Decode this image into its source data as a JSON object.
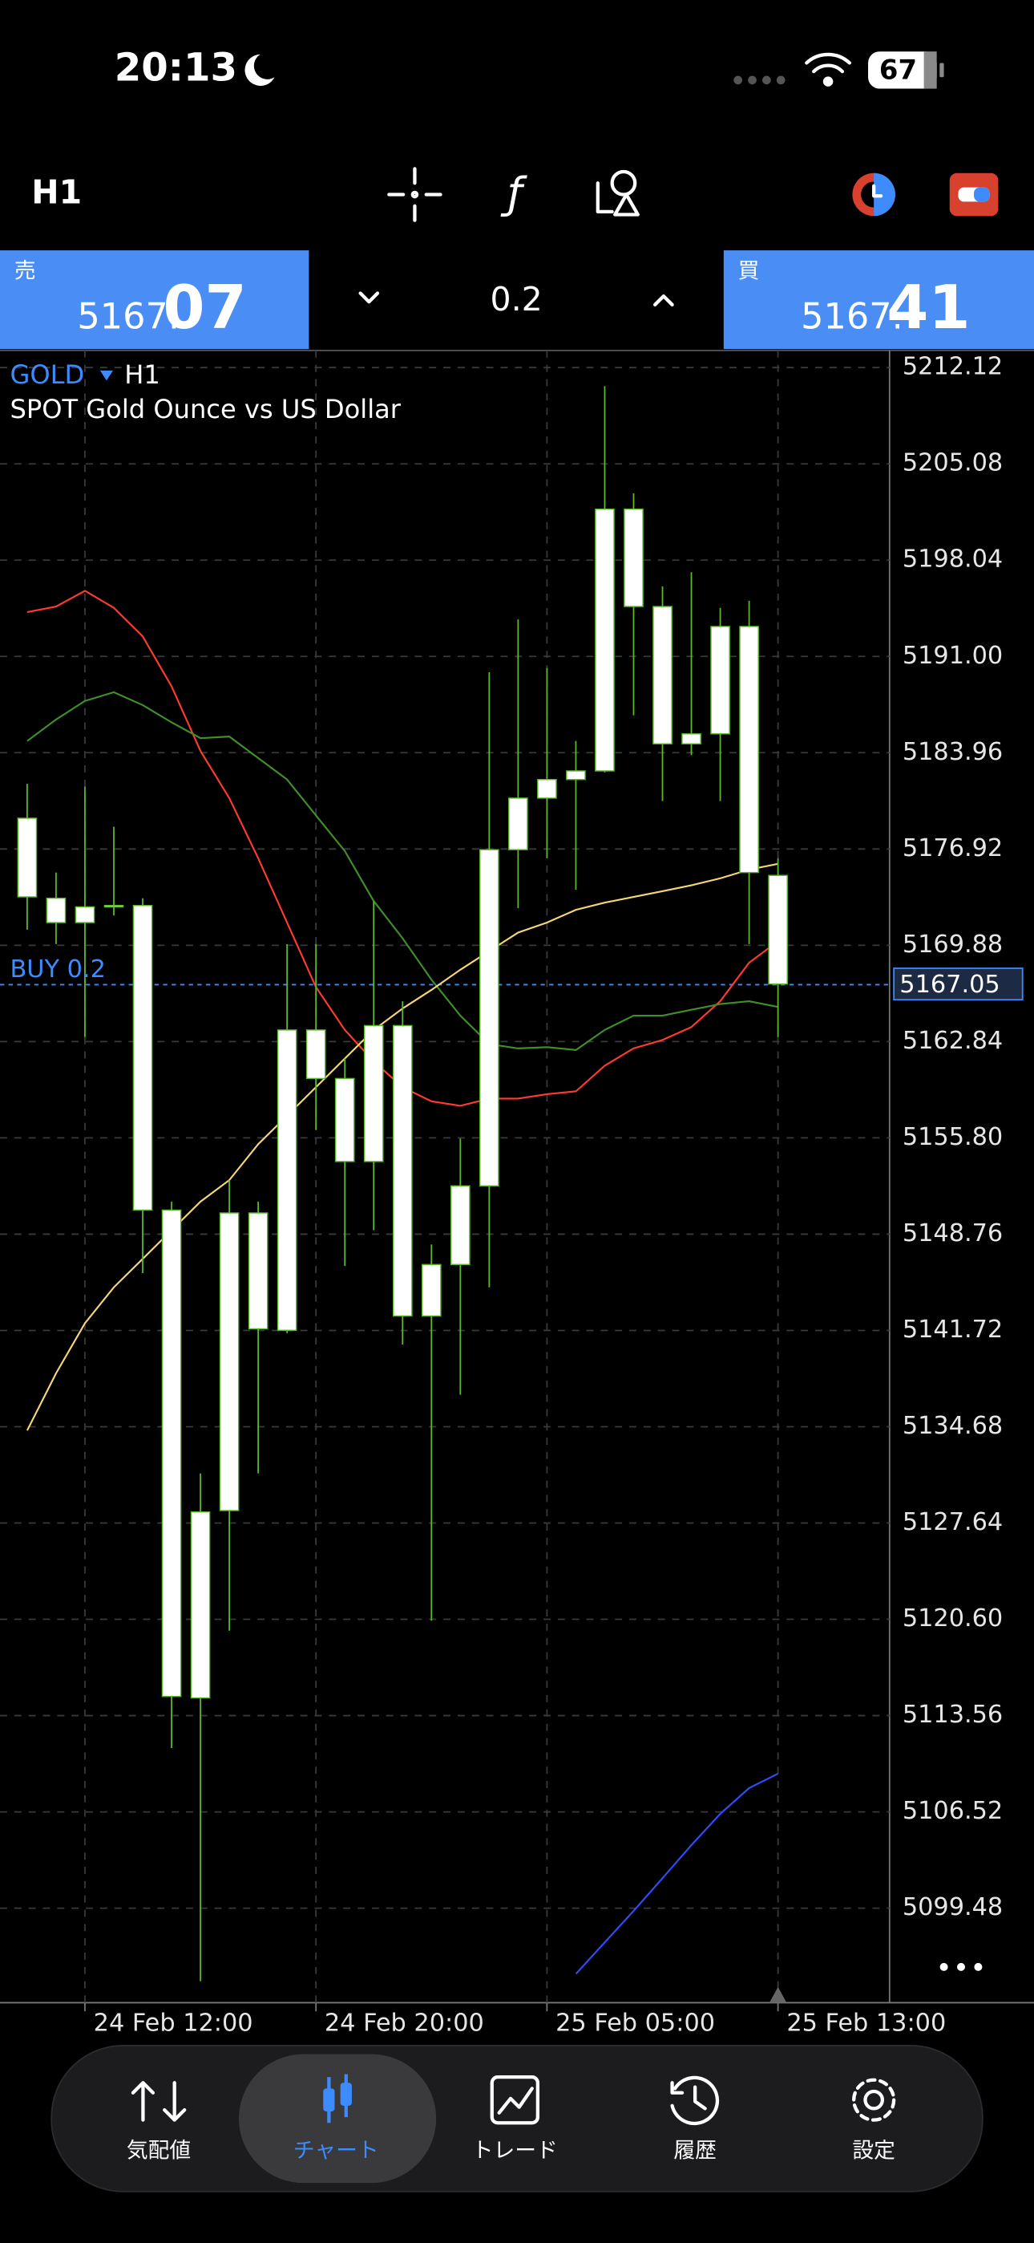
{
  "status_bar": {
    "time": "20:13",
    "battery": "67"
  },
  "toolbar": {
    "timeframe": "H1"
  },
  "trade_panel": {
    "sell": {
      "label": "売",
      "price_head": "5167.",
      "price_tail": "07"
    },
    "volume": "0.2",
    "buy": {
      "label": "買",
      "price_head": "5167.",
      "price_tail": "41"
    }
  },
  "chart_data": {
    "type": "candlestick",
    "symbol": "GOLD",
    "timeframe": "H1",
    "description": "SPOT Gold Ounce vs US Dollar",
    "categories": [
      null,
      null,
      "24 Feb 12:00",
      null,
      null,
      null,
      null,
      null,
      null,
      null,
      "24 Feb 20:00",
      null,
      null,
      null,
      null,
      null,
      null,
      null,
      "25 Feb 05:00",
      null,
      null,
      null,
      null,
      null,
      null,
      null,
      "25 Feb 13:00"
    ],
    "open": [
      5179.17,
      5173.32,
      5171.54,
      5172.69,
      5172.79,
      5150.52,
      5114.85,
      5128.55,
      5150.31,
      5141.73,
      5163.69,
      5160.14,
      5154.07,
      5164.01,
      5142.78,
      5146.54,
      5152.29,
      5176.87,
      5180.64,
      5182.0,
      5182.63,
      5201.77,
      5194.65,
      5184.61,
      5185.34,
      5193.19,
      5174.99
    ],
    "high": [
      5181.68,
      5175.2,
      5181.48,
      5178.55,
      5173.32,
      5151.14,
      5131.27,
      5152.71,
      5151.14,
      5169.97,
      5169.97,
      5161.6,
      5173.11,
      5165.79,
      5148.01,
      5155.75,
      5189.84,
      5193.71,
      5190.16,
      5184.82,
      5210.76,
      5202.92,
      5196.12,
      5197.16,
      5194.55,
      5195.07,
      5176.25
    ],
    "low": [
      5171.02,
      5169.97,
      5163.17,
      5172.06,
      5145.91,
      5111.19,
      5094.14,
      5119.77,
      5131.27,
      5141.52,
      5156.37,
      5146.44,
      5149.05,
      5140.69,
      5120.5,
      5137.02,
      5144.87,
      5172.59,
      5176.25,
      5173.95,
      5182.52,
      5186.7,
      5180.43,
      5183.78,
      5180.43,
      5169.97,
      5163.17
    ],
    "close": [
      5173.42,
      5171.54,
      5172.69,
      5172.79,
      5150.52,
      5114.96,
      5128.45,
      5150.31,
      5141.84,
      5163.69,
      5160.14,
      5154.07,
      5164.01,
      5142.78,
      5146.54,
      5152.29,
      5176.87,
      5180.64,
      5182.0,
      5182.63,
      5201.77,
      5194.65,
      5184.61,
      5185.34,
      5193.19,
      5175.2,
      5167.05
    ],
    "candle_color": "#ffffff",
    "wick_color": "#5cb82c",
    "lines": [
      {
        "color": "#ff3b30",
        "values": [
          5194.24,
          5194.65,
          5195.8,
          5194.55,
          5192.46,
          5188.8,
          5184.09,
          5180.64,
          5176.25,
          5171.54,
          5166.83,
          5163.69,
          5161.39,
          5159.51,
          5158.47,
          5158.15,
          5158.67,
          5158.67,
          5158.99,
          5159.2,
          5161.08,
          5162.34,
          5162.96,
          5163.9,
          5165.79,
          5168.61,
          5170.18
        ]
      },
      {
        "color": "#3f8f2a",
        "values": [
          5184.82,
          5186.39,
          5187.75,
          5188.38,
          5187.44,
          5186.18,
          5185.03,
          5185.14,
          5183.57,
          5182.0,
          5179.38,
          5176.77,
          5173.11,
          5170.39,
          5167.36,
          5164.74,
          5162.65,
          5162.34,
          5162.44,
          5162.23,
          5163.69,
          5164.74,
          5164.74,
          5165.16,
          5165.58,
          5165.79,
          5165.37
        ]
      },
      {
        "color": "#f7d774",
        "values": [
          5134.41,
          5138.59,
          5142.25,
          5144.87,
          5146.96,
          5149.05,
          5151.14,
          5152.71,
          5155.33,
          5157.42,
          5159.51,
          5161.6,
          5163.69,
          5165.26,
          5166.62,
          5168.09,
          5169.45,
          5170.81,
          5171.54,
          5172.48,
          5173.0,
          5173.42,
          5173.84,
          5174.26,
          5174.78,
          5175.41,
          5175.83
        ]
      },
      {
        "color": "#2f4dff",
        "values": [
          null,
          null,
          null,
          null,
          null,
          null,
          null,
          null,
          null,
          null,
          null,
          null,
          null,
          null,
          null,
          null,
          null,
          null,
          null,
          5094.67,
          5096.97,
          5099.27,
          5101.67,
          5104.08,
          5106.38,
          5108.26,
          5109.31
        ]
      }
    ],
    "ylim": [
      5092.57,
      5213.37
    ],
    "yticks": [
      5212.12,
      5205.08,
      5198.04,
      {
        "value": 5191,
        "label": "5191.00"
      },
      5183.96,
      5176.92,
      5169.88,
      5162.84,
      {
        "value": 5155.8,
        "label": "5155.80"
      },
      5148.76,
      5141.72,
      5134.68,
      5127.64,
      {
        "value": 5120.6,
        "label": "5120.60"
      },
      5113.56,
      5106.52,
      5099.48
    ],
    "grid": true,
    "position": {
      "label": "BUY 0.2",
      "price": 5167.0,
      "color": "#3d8bfd"
    },
    "current_price": 5167.05
  },
  "nav": {
    "items": [
      "気配値",
      "チャート",
      "トレード",
      "履歴",
      "設定"
    ],
    "active": 1
  }
}
